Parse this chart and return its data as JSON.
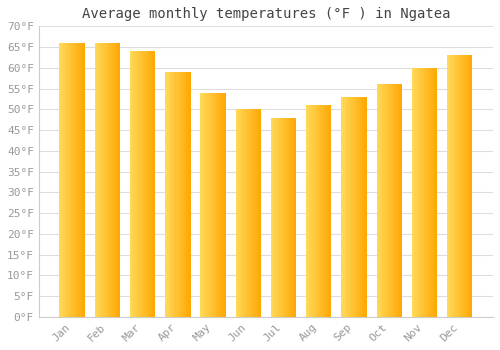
{
  "title": "Average monthly temperatures (°F ) in Ngatea",
  "months": [
    "Jan",
    "Feb",
    "Mar",
    "Apr",
    "May",
    "Jun",
    "Jul",
    "Aug",
    "Sep",
    "Oct",
    "Nov",
    "Dec"
  ],
  "values": [
    66,
    66,
    64,
    59,
    54,
    50,
    48,
    51,
    53,
    56,
    60,
    63
  ],
  "bar_color_left": "#FFD966",
  "bar_color_right": "#FFA500",
  "ylim": [
    0,
    70
  ],
  "yticks": [
    0,
    5,
    10,
    15,
    20,
    25,
    30,
    35,
    40,
    45,
    50,
    55,
    60,
    65,
    70
  ],
  "ytick_labels": [
    "0°F",
    "5°F",
    "10°F",
    "15°F",
    "20°F",
    "25°F",
    "30°F",
    "35°F",
    "40°F",
    "45°F",
    "50°F",
    "55°F",
    "60°F",
    "65°F",
    "70°F"
  ],
  "bg_color": "#ffffff",
  "grid_color": "#dddddd",
  "title_fontsize": 10,
  "tick_fontsize": 8,
  "font_family": "monospace",
  "tick_color": "#999999",
  "title_color": "#444444"
}
